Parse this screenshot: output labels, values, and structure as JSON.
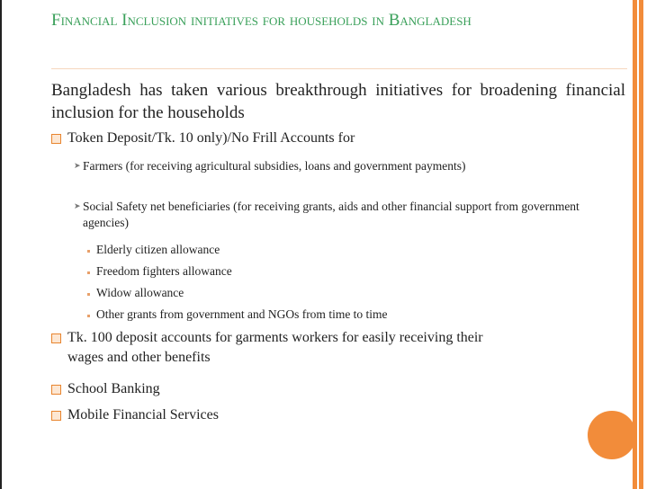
{
  "title": "Financial Inclusion initiatives for households in Bangladesh",
  "intro": "Bangladesh has taken various breakthrough initiatives for broadening financial inclusion for the households",
  "items": [
    {
      "text": "Token Deposit/Tk. 10 only)/No Frill Accounts for",
      "children": [
        {
          "text": "Farmers (for receiving  agricultural subsidies, loans and government payments)"
        },
        {
          "text": "Social Safety net beneficiaries (for receiving grants, aids and other financial support from government agencies)",
          "children": [
            "Elderly citizen allowance",
            "Freedom fighters allowance",
            "Widow allowance",
            "Other grants from government and NGOs from time to time"
          ]
        }
      ]
    },
    {
      "text": "Tk. 100 deposit accounts for garments workers for easily receiving their wages and other benefits"
    },
    {
      "text": "School Banking"
    },
    {
      "text": "Mobile Financial Services"
    }
  ]
}
